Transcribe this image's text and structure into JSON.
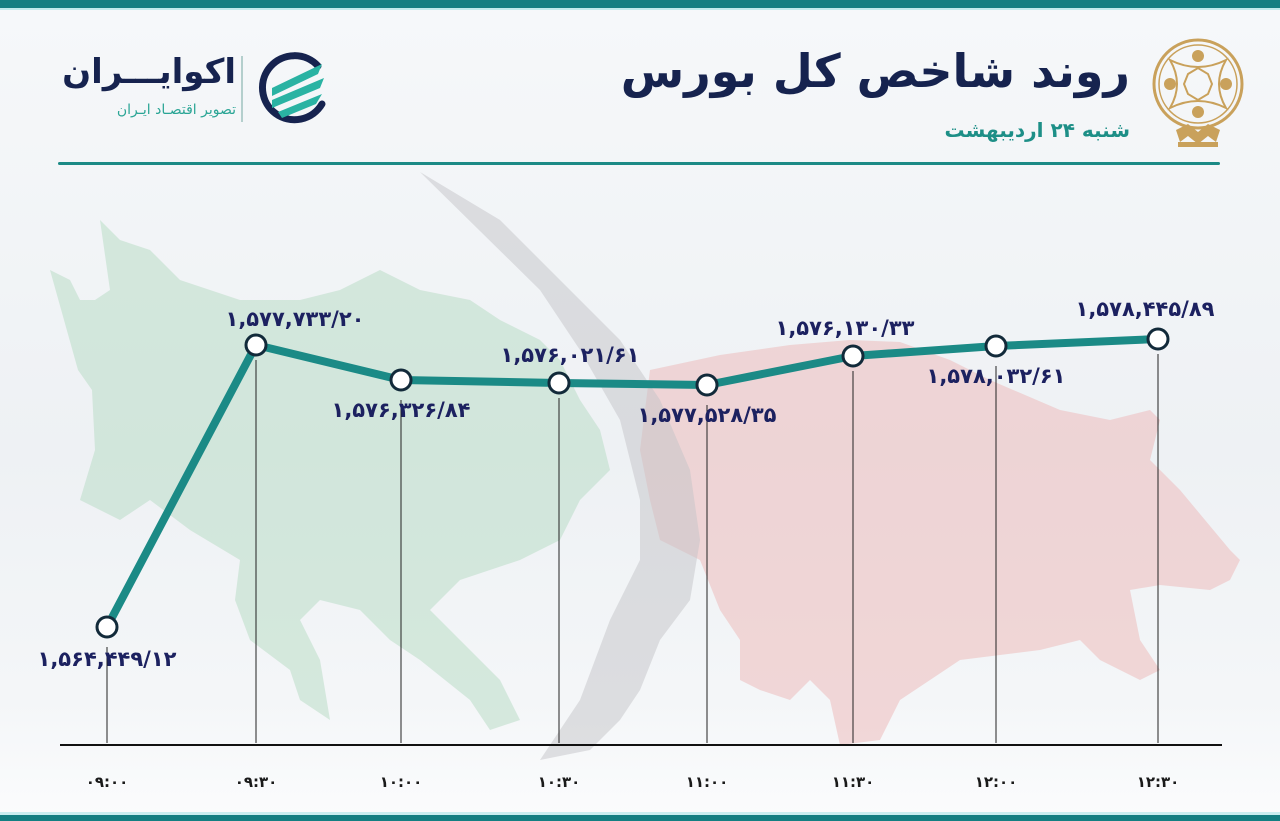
{
  "header": {
    "title": "روند شاخص کل بورس",
    "subtitle": "شنبه ۲۴ اردیبهشت",
    "exchange_logo": "tehran-stock-exchange-emblem-icon"
  },
  "brand": {
    "name": "اکوایـــران",
    "tagline": "تصویر اقتصـاد ایـران",
    "logo": "ecoiran-swirl-logo-icon"
  },
  "colors": {
    "band": "#137f82",
    "line": "#1b8a86",
    "title": "#16234f",
    "subtitle": "#1d8f87",
    "value_label": "#1c2160",
    "bull": "#b9dcc6",
    "bear": "#ecbcbc",
    "arrow": "#c8c9cd",
    "gold": "#c9a15b"
  },
  "chart_data": {
    "type": "line",
    "title": "روند شاخص کل بورس",
    "subtitle": "شنبه ۲۴ اردیبهشت",
    "xlabel": "",
    "ylabel": "",
    "categories": [
      "۰۹:۰۰",
      "۰۹:۳۰",
      "۱۰:۰۰",
      "۱۰:۳۰",
      "۱۱:۰۰",
      "۱۱:۳۰",
      "۱۲:۰۰",
      "۱۲:۳۰"
    ],
    "x": [
      "09:00",
      "09:30",
      "10:00",
      "10:30",
      "11:00",
      "11:30",
      "12:00",
      "12:30"
    ],
    "values": [
      1564449.12,
      1577733.2,
      1576326.84,
      1576021.61,
      1577528.35,
      1576130.33,
      1578032.61,
      1578445.89
    ],
    "value_labels": [
      "۱,۵۶۴,۴۴۹/۱۲",
      "۱,۵۷۷,۷۳۳/۲۰",
      "۱,۵۷۶,۳۲۶/۸۴",
      "۱,۵۷۶,۰۲۱/۶۱",
      "۱,۵۷۷,۵۲۸/۳۵",
      "۱,۵۷۶,۱۳۰/۳۳",
      "۱,۵۷۸,۰۳۲/۶۱",
      "۱,۵۷۸,۴۴۵/۸۹"
    ],
    "label_position": [
      "below",
      "above",
      "below",
      "above",
      "below",
      "above",
      "below",
      "above"
    ],
    "grid": false,
    "legend": "none",
    "series": [
      {
        "name": "شاخص کل بورس",
        "color": "#1b8a86"
      }
    ]
  }
}
